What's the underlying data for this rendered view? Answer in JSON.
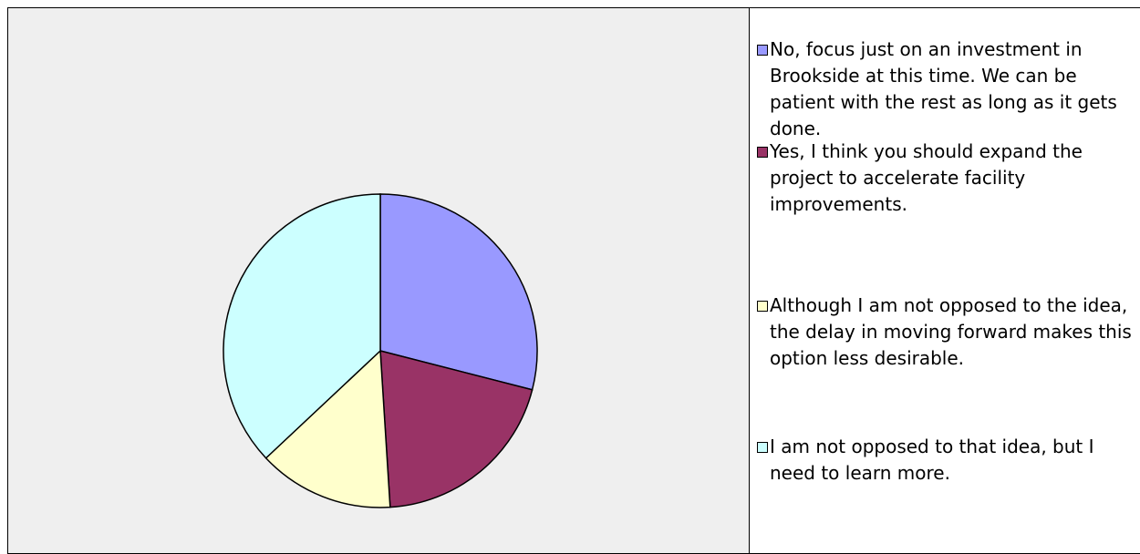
{
  "chart_data": {
    "type": "pie",
    "categories": [
      "No, focus just on an investment in Brookside at this time. We can be patient with the rest as long as it gets done.",
      "Yes, I think you should expand the project to accelerate facility improvements.",
      "Although I am not opposed to the idea, the delay in moving forward makes this option less desirable.",
      "I am not opposed to that idea, but I need to learn more."
    ],
    "values": [
      29,
      20,
      14,
      37
    ],
    "colors": [
      "#9999ff",
      "#993366",
      "#ffffcc",
      "#ccffff"
    ],
    "legend": "right"
  }
}
